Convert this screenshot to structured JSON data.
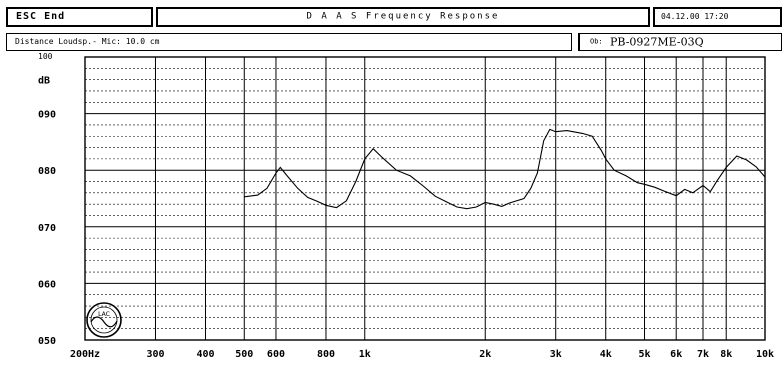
{
  "header": {
    "esc_label": "ESC End",
    "title": "D A A S Frequency Response",
    "date": "04.12.00 17:20"
  },
  "info": {
    "distance": "Distance Loudsp.- Mic: 10.0 cm",
    "model_label": "Ob:",
    "model": "PB-0927ME-03Q"
  },
  "logo_text": "LAC",
  "chart_data": {
    "type": "line",
    "title": "Frequency Response",
    "xlabel": "",
    "ylabel": "dB",
    "x_scale": "log",
    "xlim": [
      200,
      10000
    ],
    "ylim": [
      50,
      100
    ],
    "grid": true,
    "x_ticks": [
      {
        "v": 200,
        "label": "200Hz"
      },
      {
        "v": 300,
        "label": "300"
      },
      {
        "v": 400,
        "label": "400"
      },
      {
        "v": 500,
        "label": "500"
      },
      {
        "v": 600,
        "label": "600"
      },
      {
        "v": 800,
        "label": "800"
      },
      {
        "v": 1000,
        "label": "1k"
      },
      {
        "v": 2000,
        "label": "2k"
      },
      {
        "v": 3000,
        "label": "3k"
      },
      {
        "v": 4000,
        "label": "4k"
      },
      {
        "v": 5000,
        "label": "5k"
      },
      {
        "v": 6000,
        "label": "6k"
      },
      {
        "v": 7000,
        "label": "7k"
      },
      {
        "v": 8000,
        "label": "8k"
      },
      {
        "v": 10000,
        "label": "10k"
      }
    ],
    "y_ticks": [
      {
        "v": 50,
        "label": "050"
      },
      {
        "v": 60,
        "label": "060"
      },
      {
        "v": 70,
        "label": "070"
      },
      {
        "v": 80,
        "label": "080"
      },
      {
        "v": 90,
        "label": "090"
      }
    ],
    "y_unit_label": "dB",
    "y_top_label": "100",
    "series": [
      {
        "color": "#000000",
        "points": [
          [
            500,
            75.3
          ],
          [
            540,
            75.6
          ],
          [
            570,
            76.8
          ],
          [
            600,
            79.5
          ],
          [
            615,
            80.5
          ],
          [
            640,
            79.0
          ],
          [
            680,
            76.8
          ],
          [
            720,
            75.2
          ],
          [
            760,
            74.5
          ],
          [
            800,
            73.8
          ],
          [
            850,
            73.4
          ],
          [
            900,
            74.6
          ],
          [
            950,
            78.0
          ],
          [
            1000,
            82.0
          ],
          [
            1050,
            83.8
          ],
          [
            1100,
            82.4
          ],
          [
            1200,
            80.0
          ],
          [
            1300,
            79.0
          ],
          [
            1400,
            77.2
          ],
          [
            1500,
            75.4
          ],
          [
            1600,
            74.4
          ],
          [
            1700,
            73.5
          ],
          [
            1800,
            73.2
          ],
          [
            1900,
            73.5
          ],
          [
            2000,
            74.3
          ],
          [
            2100,
            74.0
          ],
          [
            2200,
            73.6
          ],
          [
            2300,
            74.2
          ],
          [
            2500,
            75.0
          ],
          [
            2600,
            76.8
          ],
          [
            2700,
            79.5
          ],
          [
            2800,
            85.2
          ],
          [
            2900,
            87.2
          ],
          [
            3000,
            86.8
          ],
          [
            3200,
            87.0
          ],
          [
            3500,
            86.5
          ],
          [
            3700,
            86.0
          ],
          [
            3900,
            83.5
          ],
          [
            4000,
            82.0
          ],
          [
            4200,
            80.0
          ],
          [
            4500,
            79.0
          ],
          [
            4800,
            77.8
          ],
          [
            5000,
            77.5
          ],
          [
            5300,
            77.0
          ],
          [
            5600,
            76.3
          ],
          [
            6000,
            75.5
          ],
          [
            6300,
            76.6
          ],
          [
            6600,
            76.0
          ],
          [
            7000,
            77.3
          ],
          [
            7300,
            76.2
          ],
          [
            7600,
            78.2
          ],
          [
            8000,
            80.5
          ],
          [
            8500,
            82.5
          ],
          [
            9000,
            81.8
          ],
          [
            9500,
            80.6
          ],
          [
            10000,
            78.8
          ]
        ]
      }
    ]
  }
}
